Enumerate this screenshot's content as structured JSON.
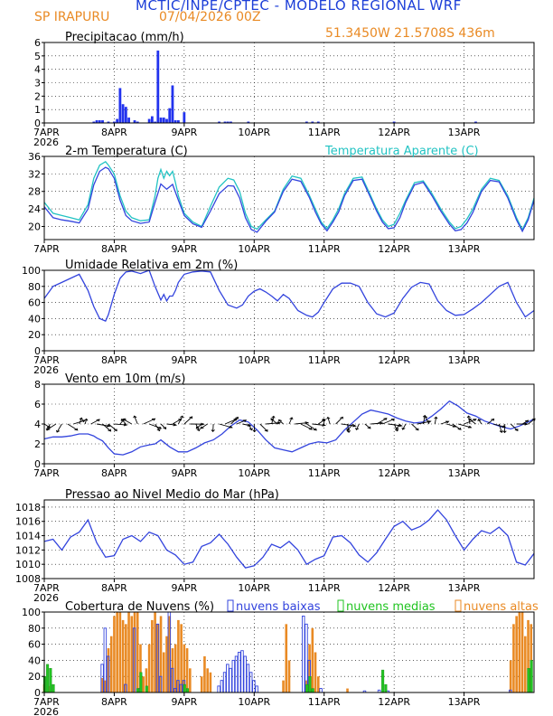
{
  "header": {
    "title": "MCTIC/INPE/CPTEC - MODELO REGIONAL WRF",
    "station": "SP IRAPURU",
    "run": "07/04/2026 00Z",
    "coords": "51.3450W 21.5708S 436m"
  },
  "colors": {
    "header_blue": "#1d3fd8",
    "orange": "#e98a24",
    "line_blue": "#3344dd",
    "cyan": "#22c3c3",
    "green": "#21c421",
    "black": "#000000"
  },
  "x_axis": {
    "tick_labels": [
      "7APR",
      "8APR",
      "9APR",
      "10APR",
      "11APR",
      "12APR",
      "13APR"
    ],
    "year_label": "2026",
    "xlim": [
      0,
      168
    ]
  },
  "chart_data": [
    {
      "id": "precip",
      "type": "bar",
      "title": "Precipitacao (mm/h)",
      "ylim": [
        0,
        6
      ],
      "yticks": [
        "0",
        "1",
        "2",
        "3",
        "4",
        "5",
        "6"
      ],
      "show_year": true,
      "series": [
        {
          "color": "#2233ee",
          "x": [
            17,
            18,
            19,
            20,
            22,
            24,
            25,
            26,
            27,
            28,
            29,
            31,
            32,
            36,
            37,
            38,
            39,
            40,
            41,
            42,
            43,
            44,
            45,
            46,
            48,
            60,
            62,
            63,
            64,
            70,
            90,
            92,
            94,
            120,
            148
          ],
          "values": [
            0.1,
            0.2,
            0.2,
            0.2,
            0.1,
            0.1,
            0.3,
            2.6,
            1.4,
            1.2,
            0.4,
            0.2,
            0.1,
            0.3,
            0.5,
            0.1,
            5.4,
            0.4,
            0.4,
            0.3,
            1.1,
            2.8,
            0.2,
            0.2,
            0.8,
            0.1,
            0.1,
            0.1,
            0.1,
            0.1,
            0.1,
            0.1,
            0.1,
            0.1,
            0.1
          ]
        }
      ]
    },
    {
      "id": "temp",
      "type": "line",
      "title": "2-m Temperatura (C)",
      "legend": [
        {
          "label": "Temperatura Aparente (C)",
          "color": "#22c3c3"
        }
      ],
      "ylim": [
        17,
        36
      ],
      "yticks": [
        "20",
        "24",
        "28",
        "32",
        "36"
      ],
      "ytick_values": [
        20,
        24,
        28,
        32,
        36
      ],
      "show_year": false,
      "series": [
        {
          "color": "#22c3c3",
          "x": [
            0,
            3,
            6,
            9,
            12,
            15,
            17,
            19,
            21,
            22,
            24,
            26,
            28,
            30,
            33,
            36,
            38,
            39,
            40,
            41,
            42,
            43,
            44,
            45,
            46,
            48,
            51,
            54,
            57,
            60,
            63,
            65,
            67,
            69,
            71,
            73,
            76,
            79,
            82,
            85,
            88,
            91,
            93,
            95,
            97,
            99,
            101,
            103,
            106,
            109,
            112,
            114,
            116,
            118,
            120,
            122,
            124,
            127,
            130,
            133,
            136,
            139,
            141,
            143,
            145,
            147,
            150,
            153,
            156,
            159,
            162,
            164,
            166,
            168
          ],
          "values": [
            25.5,
            23,
            22.5,
            22,
            21.5,
            25,
            31,
            34,
            34.8,
            34,
            32,
            27,
            23.5,
            22,
            21.3,
            21.5,
            27,
            31,
            33,
            31,
            32.6,
            31.6,
            32.6,
            30,
            27,
            23,
            21,
            20,
            24.6,
            29,
            31,
            30.6,
            28,
            23,
            20,
            19.4,
            21.5,
            23.5,
            28.5,
            31.5,
            31,
            27,
            24,
            21,
            19.5,
            21.5,
            24,
            27.5,
            31,
            31.3,
            27,
            24,
            21.5,
            20,
            20.5,
            23,
            26,
            30,
            30.4,
            27.5,
            24,
            21,
            19.5,
            20,
            21.7,
            24,
            28.5,
            31,
            30.5,
            27,
            22,
            19.3,
            22,
            26.5
          ]
        },
        {
          "color": "#3344dd",
          "x": [
            0,
            3,
            6,
            9,
            12,
            15,
            17,
            19,
            21,
            22,
            24,
            26,
            28,
            30,
            33,
            36,
            38,
            40,
            42,
            44,
            46,
            48,
            51,
            54,
            57,
            60,
            63,
            65,
            67,
            69,
            71,
            73,
            76,
            79,
            82,
            85,
            88,
            91,
            93,
            95,
            97,
            99,
            101,
            103,
            106,
            109,
            112,
            114,
            116,
            118,
            120,
            122,
            124,
            127,
            130,
            133,
            136,
            139,
            141,
            143,
            145,
            147,
            150,
            153,
            156,
            159,
            162,
            164,
            166,
            168
          ],
          "values": [
            24.5,
            22,
            21.5,
            21.2,
            20.8,
            24,
            29.5,
            32.6,
            33.5,
            33.2,
            31,
            26,
            22.5,
            21.3,
            20.7,
            21,
            25.5,
            29.7,
            28.5,
            29.6,
            26,
            22.5,
            20.6,
            19.8,
            23.5,
            27.5,
            29.3,
            29.2,
            26.5,
            22,
            19.3,
            18.7,
            21.2,
            23.3,
            28,
            30.8,
            30.3,
            26.5,
            23.3,
            20.6,
            19,
            21,
            23.3,
            27,
            30.5,
            30.8,
            26.5,
            23.5,
            21,
            19.5,
            19.7,
            22,
            25.5,
            29.5,
            30.1,
            27,
            23.5,
            20.5,
            19,
            19.3,
            20.8,
            23.2,
            28,
            30.5,
            30.2,
            26.5,
            21.5,
            18.9,
            21.5,
            26
          ]
        }
      ]
    },
    {
      "id": "humidity",
      "type": "line",
      "title": "Umidade Relativa em 2m (%)",
      "ylim": [
        0,
        100
      ],
      "yticks": [
        "0",
        "20",
        "40",
        "60",
        "80",
        "100"
      ],
      "show_year": true,
      "series": [
        {
          "color": "#3344dd",
          "x": [
            0,
            3,
            6,
            9,
            12,
            15,
            17,
            19,
            21,
            22,
            24,
            26,
            28,
            30,
            33,
            36,
            38,
            40,
            41,
            42,
            43,
            44,
            45,
            46,
            48,
            51,
            54,
            57,
            60,
            63,
            66,
            68,
            70,
            72,
            74,
            76,
            78,
            80,
            82,
            84,
            87,
            90,
            92,
            94,
            96,
            99,
            102,
            105,
            108,
            111,
            114,
            117,
            120,
            123,
            126,
            129,
            132,
            135,
            138,
            141,
            144,
            147,
            150,
            153,
            156,
            159,
            162,
            165,
            168
          ],
          "values": [
            65,
            80,
            85,
            90,
            95,
            75,
            55,
            40,
            37,
            45,
            70,
            90,
            98,
            99,
            96,
            100,
            80,
            63,
            70,
            62,
            68,
            68,
            75,
            85,
            95,
            98,
            99,
            98,
            75,
            57,
            53,
            57,
            68,
            74,
            77,
            73,
            68,
            62,
            70,
            65,
            50,
            44,
            42,
            48,
            60,
            77,
            84,
            84,
            80,
            60,
            46,
            42,
            47,
            65,
            79,
            85,
            83,
            62,
            50,
            44,
            45,
            52,
            60,
            70,
            80,
            85,
            60,
            42,
            50
          ]
        }
      ]
    },
    {
      "id": "wind",
      "type": "line",
      "title": "Vento em 10m (m/s)",
      "ylim": [
        0,
        8
      ],
      "yticks": [
        "0",
        "2",
        "4",
        "6",
        "8"
      ],
      "show_year": false,
      "series": [
        {
          "color": "#3344dd",
          "x": [
            0,
            3,
            6,
            9,
            12,
            15,
            17,
            18,
            20,
            22,
            24,
            27,
            30,
            33,
            36,
            38,
            40,
            43,
            46,
            49,
            52,
            55,
            58,
            61,
            64,
            67,
            70,
            73,
            76,
            79,
            82,
            85,
            88,
            91,
            94,
            97,
            100,
            103,
            106,
            109,
            112,
            115,
            118,
            121,
            124,
            127,
            130,
            133,
            136,
            139,
            142,
            145,
            148,
            151,
            154,
            157,
            160,
            163,
            166,
            168
          ],
          "values": [
            2.5,
            2.7,
            2.7,
            2.8,
            3.0,
            3.0,
            2.8,
            2.6,
            2.3,
            1.6,
            1.0,
            0.9,
            1.2,
            1.7,
            1.9,
            2.0,
            2.4,
            1.7,
            1.2,
            1.2,
            1.6,
            2.1,
            2.4,
            3.0,
            3.8,
            4.4,
            4.2,
            3.4,
            2.4,
            1.6,
            1.4,
            1.2,
            1.6,
            2.0,
            2.2,
            2.1,
            2.4,
            3.4,
            4.2,
            5.0,
            5.4,
            5.2,
            5.0,
            4.6,
            4.3,
            4.1,
            4.2,
            4.8,
            5.5,
            6.3,
            5.8,
            5.1,
            4.8,
            4.3,
            4.0,
            3.7,
            3.5,
            3.8,
            4.2,
            4.5
          ]
        }
      ]
    },
    {
      "id": "pressure",
      "type": "line",
      "title": "Pressao ao Nivel Medio do Mar (hPa)",
      "ylim": [
        1008,
        1019
      ],
      "yticks": [
        "1008",
        "1010",
        "1012",
        "1014",
        "1016",
        "1018"
      ],
      "ytick_values": [
        1008,
        1010,
        1012,
        1014,
        1016,
        1018
      ],
      "show_year": true,
      "series": [
        {
          "color": "#3344dd",
          "x": [
            0,
            3,
            6,
            9,
            12,
            15,
            18,
            21,
            24,
            27,
            30,
            33,
            36,
            39,
            42,
            45,
            48,
            51,
            54,
            57,
            60,
            63,
            66,
            69,
            72,
            75,
            78,
            81,
            84,
            87,
            90,
            93,
            96,
            99,
            102,
            105,
            108,
            111,
            114,
            117,
            120,
            123,
            126,
            129,
            132,
            135,
            138,
            141,
            144,
            147,
            150,
            153,
            156,
            159,
            162,
            165,
            168
          ],
          "values": [
            1013.2,
            1013.5,
            1012.0,
            1013.8,
            1014.5,
            1016.2,
            1013.0,
            1011.0,
            1011.2,
            1013.5,
            1014.0,
            1013.2,
            1014.5,
            1014.0,
            1012.0,
            1011.3,
            1010.0,
            1010.3,
            1012.5,
            1013.0,
            1014.2,
            1012.8,
            1011.0,
            1009.5,
            1009.8,
            1011.0,
            1012.8,
            1012.3,
            1013.2,
            1012.0,
            1010.0,
            1010.7,
            1011.2,
            1013.8,
            1014.0,
            1013.0,
            1011.3,
            1010.3,
            1011.6,
            1013.5,
            1015.3,
            1016.0,
            1014.8,
            1015.3,
            1016.2,
            1017.6,
            1016.2,
            1014.0,
            1012.0,
            1013.5,
            1014.7,
            1014.3,
            1015.2,
            1014.0,
            1010.3,
            1009.9,
            1011.5
          ]
        }
      ]
    },
    {
      "id": "clouds",
      "type": "bar",
      "title": "Cobertura de Nuvens (%)",
      "legend": [
        {
          "label": "nuvens baixas",
          "color": "#3344dd"
        },
        {
          "label": "nuvens medias",
          "color": "#21c421"
        },
        {
          "label": "nuvens altas",
          "color": "#e98a24"
        }
      ],
      "ylim": [
        0,
        100
      ],
      "yticks": [
        "0",
        "20",
        "40",
        "60",
        "80",
        "100"
      ],
      "show_year": true,
      "series": [
        {
          "name": "nuvens altas",
          "color": "#e98a24",
          "x": [
            0,
            2,
            20,
            21,
            22,
            23,
            24,
            25,
            26,
            27,
            28,
            29,
            30,
            31,
            32,
            33,
            34,
            35,
            36,
            37,
            38,
            39,
            40,
            41,
            42,
            43,
            44,
            45,
            46,
            47,
            48,
            49,
            50,
            54,
            55,
            56,
            57,
            82,
            83,
            84,
            90,
            91,
            92,
            93,
            94,
            104,
            160,
            161,
            162,
            163,
            164,
            165,
            166,
            167
          ],
          "values": [
            10,
            8,
            18,
            15,
            55,
            70,
            95,
            100,
            100,
            90,
            85,
            100,
            95,
            100,
            100,
            60,
            20,
            30,
            60,
            90,
            100,
            85,
            95,
            50,
            70,
            95,
            55,
            60,
            90,
            85,
            60,
            55,
            30,
            20,
            45,
            30,
            25,
            15,
            85,
            40,
            15,
            60,
            80,
            50,
            20,
            5,
            40,
            85,
            95,
            100,
            100,
            70,
            90,
            85
          ]
        },
        {
          "name": "nuvens baixas",
          "color": "#3344dd",
          "x": [
            20,
            21,
            22,
            28,
            31,
            33,
            39,
            40,
            43,
            44,
            45,
            46,
            47,
            48,
            60,
            61,
            62,
            63,
            64,
            65,
            66,
            67,
            68,
            69,
            70,
            71,
            72,
            73,
            89,
            90,
            91,
            95,
            110,
            115,
            118,
            160
          ],
          "values": [
            35,
            80,
            45,
            10,
            80,
            5,
            85,
            20,
            100,
            30,
            5,
            15,
            10,
            15,
            8,
            15,
            25,
            35,
            30,
            40,
            45,
            50,
            52,
            45,
            35,
            25,
            15,
            8,
            95,
            85,
            40,
            5,
            2,
            3,
            2,
            3
          ]
        },
        {
          "name": "nuvens medias",
          "color": "#21c421",
          "x": [
            0,
            1,
            2,
            3,
            32,
            33,
            35,
            48,
            49,
            90,
            91,
            92,
            116,
            117,
            166,
            167
          ],
          "values": [
            20,
            35,
            30,
            10,
            5,
            25,
            8,
            10,
            5,
            10,
            20,
            5,
            28,
            10,
            30,
            40
          ]
        }
      ]
    }
  ]
}
